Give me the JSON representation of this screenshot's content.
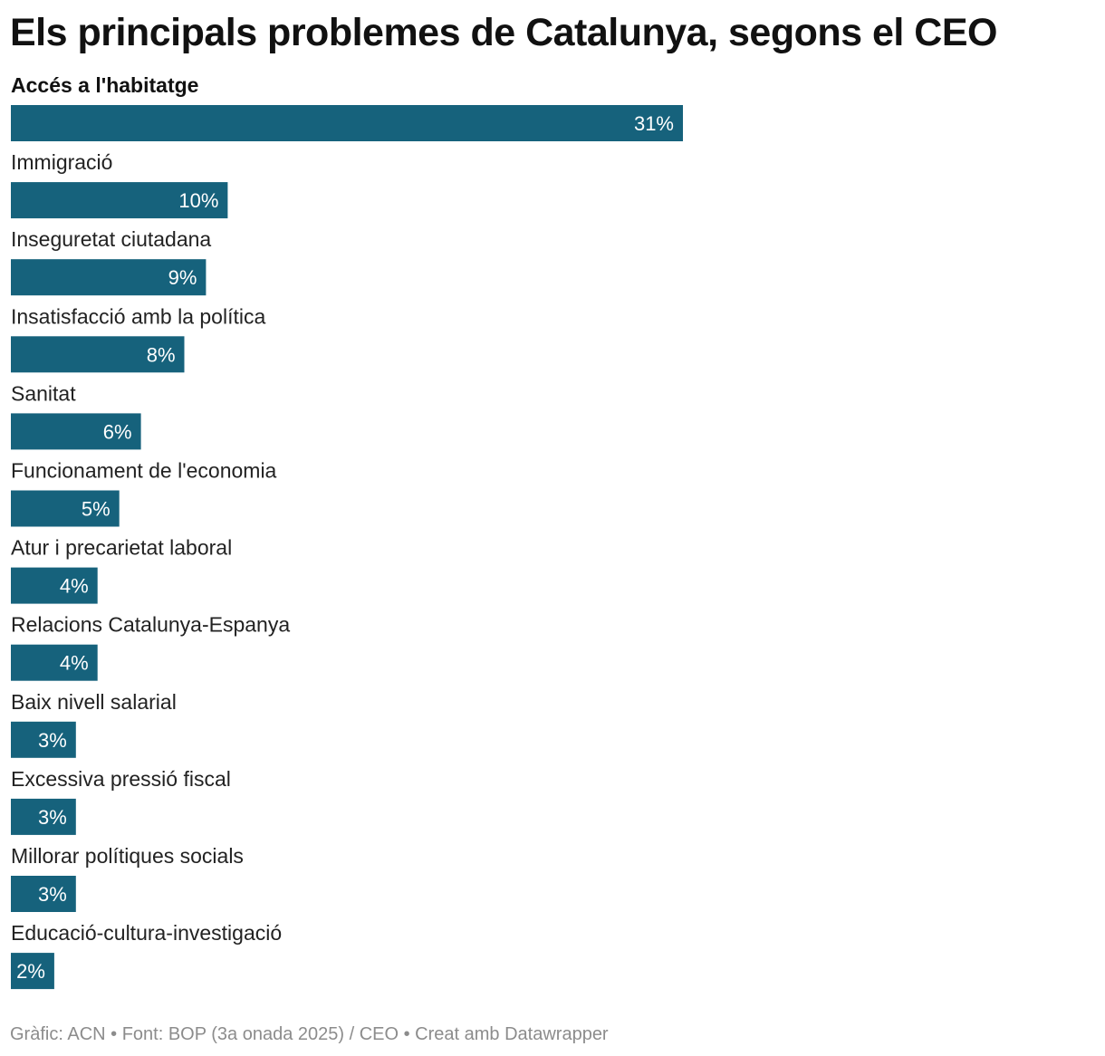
{
  "chart_data": {
    "type": "bar",
    "orientation": "horizontal",
    "title": "Els principals problemes de Catalunya, segons el CEO",
    "categories": [
      "Accés a l'habitatge",
      "Immigració",
      "Inseguretat ciutadana",
      "Insatisfacció amb la política",
      "Sanitat",
      "Funcionament de l'economia",
      "Atur i precarietat laboral",
      "Relacions Catalunya-Espanya",
      "Baix nivell salarial",
      "Excessiva pressió fiscal",
      "Millorar polítiques socials",
      "Educació-cultura-investigació"
    ],
    "values": [
      31,
      10,
      9,
      8,
      6,
      5,
      4,
      4,
      3,
      3,
      3,
      2
    ],
    "value_labels": [
      "31%",
      "10%",
      "9%",
      "8%",
      "6%",
      "5%",
      "4%",
      "4%",
      "3%",
      "3%",
      "3%",
      "2%"
    ],
    "unit": "%",
    "highlighted_category": "Accés a l'habitatge",
    "bar_color": "#16627c",
    "label_inside_color": "#ffffff",
    "label_outside_color": "#333333",
    "xlim": [
      0,
      31
    ],
    "grid": false,
    "legend": "none"
  },
  "footer": {
    "credit": "Gràfic: ACN • Font: BOP (3a onada 2025) / CEO • Creat amb Datawrapper"
  }
}
